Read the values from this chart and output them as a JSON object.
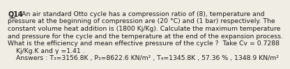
{
  "title_label": "Q14",
  "body_lines": [
    ": An air standard Otto cycle has a compression ratio of (8), temperature and",
    "pressure at the beginning of compression are (20 °C) and (1 bar) respectively. The",
    "constant volume heat addition is (1800 Kj/Kg). Calculate the maximum temperature",
    "and pressure for the cycle and the temperature at the end of the expansion process.",
    "What is the efficiency and mean effective pressure of the cycle ?  Take Cv = 0.7288",
    "    Kj/Kg.K and γ =1.41 .",
    "    Answers : T₃=3156.8K , P₃=8622.6 KN/m² , T₄=1345.8K , 57.36 % , 1348.9 KN/m²"
  ],
  "bg_color": "#f0ede4",
  "text_color": "#1a1a1a",
  "title_underline_color": "#1a1a1a",
  "font_size": 6.7,
  "answer_font_size": 6.7,
  "title_font_size": 6.9
}
